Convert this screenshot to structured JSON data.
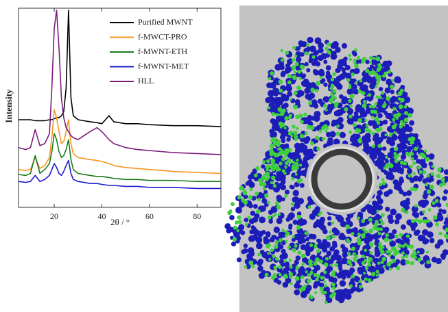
{
  "chart_data": {
    "type": "line",
    "x_label": "2θ / °",
    "y_label": "Intensity",
    "x": [
      5,
      8,
      10,
      12,
      14,
      16,
      18,
      19,
      20,
      21,
      22,
      23,
      24,
      25,
      26,
      27,
      28,
      30,
      35,
      38,
      40,
      43,
      45,
      50,
      55,
      60,
      70,
      80,
      90
    ],
    "xlim": [
      5,
      90
    ],
    "xticks": [
      20,
      40,
      60,
      80
    ],
    "ylim": [
      0,
      100
    ],
    "series": [
      {
        "name": "Purified MWNT",
        "color": "#000000",
        "values": [
          44,
          44,
          44,
          43.5,
          43.5,
          43.5,
          44,
          44,
          44.5,
          45,
          45,
          46,
          48,
          60,
          99,
          55,
          46,
          44,
          43,
          42.5,
          42,
          46,
          43,
          42,
          42,
          41.5,
          41,
          41,
          40.5
        ]
      },
      {
        "name": "f-MWCT-PRO",
        "color": "#f7941d",
        "values": [
          19,
          18.5,
          19,
          25,
          19.5,
          21,
          25,
          35,
          49,
          45,
          38,
          32,
          33,
          38,
          44,
          32,
          27,
          25,
          24,
          23.5,
          23,
          22,
          21,
          20,
          19.5,
          19,
          18,
          17.5,
          17
        ]
      },
      {
        "name": "f-MWNT-ETH",
        "color": "#1a7a1a",
        "values": [
          16.5,
          16,
          17,
          26,
          17,
          19,
          22,
          28,
          37,
          34,
          28,
          25,
          26,
          29,
          34,
          24,
          19,
          17,
          16,
          15.5,
          15.5,
          15,
          14.5,
          14,
          14,
          13.5,
          13.5,
          13,
          13
        ]
      },
      {
        "name": "f-MWNT-MET",
        "color": "#1a1acc",
        "values": [
          13,
          12.5,
          13,
          16,
          13,
          14,
          16,
          19,
          22,
          20,
          17,
          16,
          18,
          21,
          23.5,
          17,
          14,
          13,
          12,
          12,
          11.5,
          11,
          11,
          10.5,
          10.5,
          10,
          10,
          9.5,
          9.5
        ]
      },
      {
        "name": "HLL",
        "color": "#7b1a7b",
        "values": [
          30,
          29,
          30,
          39,
          31,
          32,
          37,
          60,
          90,
          99,
          80,
          55,
          45,
          40,
          38,
          36,
          35,
          34,
          38,
          40,
          38,
          34,
          32,
          30,
          29,
          28.5,
          27.5,
          27,
          26.5
        ]
      }
    ]
  }
}
